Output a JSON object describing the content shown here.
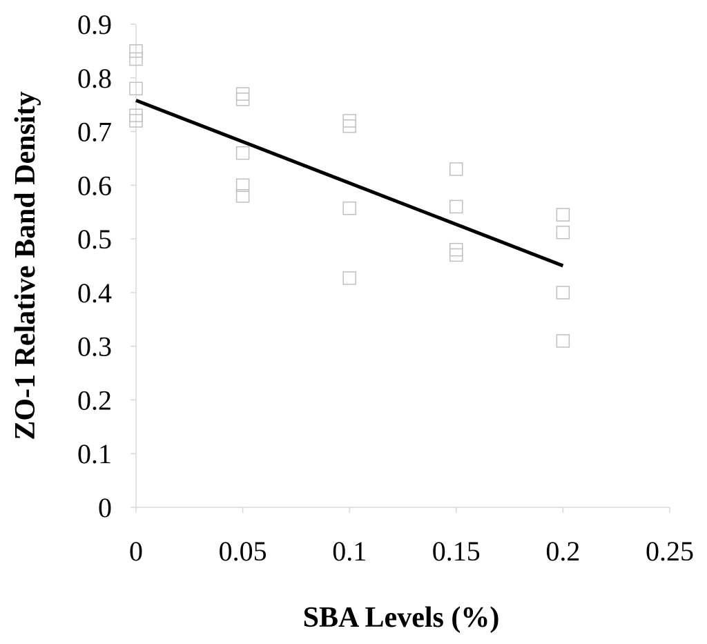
{
  "chart_data": {
    "type": "scatter",
    "xlabel": "SBA Levels (%)",
    "ylabel": "ZO-1 Relative Band Density",
    "xlim": [
      0,
      0.25
    ],
    "ylim": [
      0,
      0.9
    ],
    "x_ticks": [
      "0",
      "0.05",
      "0.1",
      "0.15",
      "0.2",
      "0.25"
    ],
    "x_tick_values": [
      0,
      0.05,
      0.1,
      0.15,
      0.2,
      0.25
    ],
    "y_ticks": [
      "0",
      "0.1",
      "0.2",
      "0.3",
      "0.4",
      "0.5",
      "0.6",
      "0.7",
      "0.8",
      "0.9"
    ],
    "y_tick_values": [
      0,
      0.1,
      0.2,
      0.3,
      0.4,
      0.5,
      0.6,
      0.7,
      0.8,
      0.9
    ],
    "grid": false,
    "marker": "open-square",
    "colors": {
      "marker": "#bfbfbf",
      "trendline": "#000000",
      "axis": "#d9d9d9"
    },
    "points": [
      {
        "x": 0,
        "y": 0.85
      },
      {
        "x": 0,
        "y": 0.835
      },
      {
        "x": 0,
        "y": 0.78
      },
      {
        "x": 0,
        "y": 0.73
      },
      {
        "x": 0,
        "y": 0.72
      },
      {
        "x": 0.05,
        "y": 0.77
      },
      {
        "x": 0.05,
        "y": 0.76
      },
      {
        "x": 0.05,
        "y": 0.66
      },
      {
        "x": 0.05,
        "y": 0.6
      },
      {
        "x": 0.05,
        "y": 0.58
      },
      {
        "x": 0.1,
        "y": 0.72
      },
      {
        "x": 0.1,
        "y": 0.71
      },
      {
        "x": 0.1,
        "y": 0.557
      },
      {
        "x": 0.1,
        "y": 0.427
      },
      {
        "x": 0.15,
        "y": 0.63
      },
      {
        "x": 0.15,
        "y": 0.56
      },
      {
        "x": 0.15,
        "y": 0.48
      },
      {
        "x": 0.15,
        "y": 0.47
      },
      {
        "x": 0.2,
        "y": 0.545
      },
      {
        "x": 0.2,
        "y": 0.512
      },
      {
        "x": 0.2,
        "y": 0.4
      },
      {
        "x": 0.2,
        "y": 0.31
      }
    ],
    "trendline": {
      "type": "linear",
      "x": [
        0,
        0.2
      ],
      "y": [
        0.758,
        0.45
      ]
    }
  }
}
